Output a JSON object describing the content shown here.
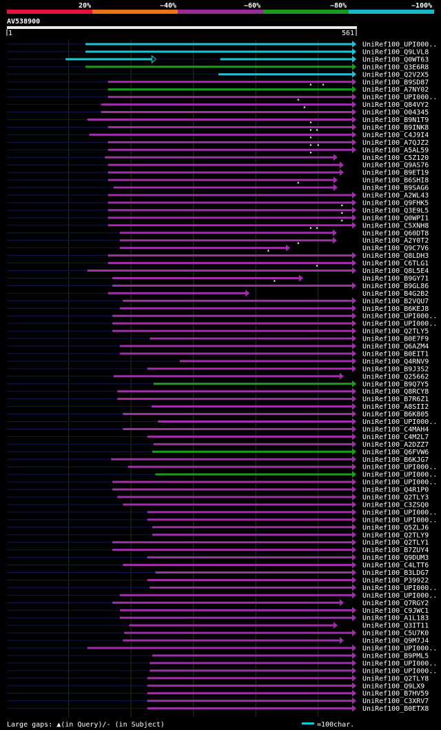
{
  "legend_bar": {
    "segments": [
      {
        "color": "#e8103a"
      },
      {
        "color": "#e8741a"
      },
      {
        "color": "#9a2a9a"
      },
      {
        "color": "#1a9a1a"
      },
      {
        "color": "#18b8c8"
      }
    ],
    "labels": [
      "20%",
      "~40%",
      "~60%",
      "~80%",
      "~100%"
    ]
  },
  "query": {
    "id": "AV538900",
    "start_label": "1",
    "end_label": "561",
    "start": 1,
    "end": 561
  },
  "colors": {
    "cyan": "#18c8d8",
    "purple": "#a030a8",
    "green": "#18a018",
    "navy": "#101850",
    "axis": "#e8e8e8",
    "guide": "#2a2f16"
  },
  "hits": [
    {
      "name": "UniRef100_UPI000..",
      "color": "cyan",
      "start": 127,
      "end": 561,
      "ticks": []
    },
    {
      "name": "UniRef100_Q9LVL8",
      "color": "cyan",
      "start": 127,
      "end": 561,
      "ticks": []
    },
    {
      "name": "UniRef100_Q0WT63",
      "color": "cyan",
      "start": 95,
      "end": 561,
      "ticks": [],
      "gap": [
        240,
        343
      ]
    },
    {
      "name": "UniRef100_Q3E6R8",
      "color": "green",
      "start": 127,
      "end": 561,
      "ticks": []
    },
    {
      "name": "UniRef100_Q2V2X5",
      "color": "cyan",
      "start": 340,
      "end": 561,
      "ticks": []
    },
    {
      "name": "UniRef100_B9SD87",
      "color": "purple",
      "start": 163,
      "end": 561,
      "ticks": [
        488,
        508
      ]
    },
    {
      "name": "UniRef100_A7NY02",
      "color": "green",
      "start": 163,
      "end": 561,
      "ticks": []
    },
    {
      "name": "UniRef100_UPI000..",
      "color": "purple",
      "start": 163,
      "end": 561,
      "ticks": [
        468
      ]
    },
    {
      "name": "UniRef100_Q84VY2",
      "color": "purple",
      "start": 152,
      "end": 561,
      "ticks": [
        478
      ]
    },
    {
      "name": "UniRef100_O04345",
      "color": "purple",
      "start": 152,
      "end": 561,
      "ticks": []
    },
    {
      "name": "UniRef100_B9N1T9",
      "color": "purple",
      "start": 130,
      "end": 561,
      "ticks": [
        488
      ]
    },
    {
      "name": "UniRef100_B9INK8",
      "color": "purple",
      "start": 163,
      "end": 561,
      "ticks": [
        488,
        498
      ]
    },
    {
      "name": "UniRef100_C4J9I4",
      "color": "purple",
      "start": 133,
      "end": 561,
      "ticks": [
        488
      ]
    },
    {
      "name": "UniRef100_A7QJZ2",
      "color": "purple",
      "start": 163,
      "end": 561,
      "ticks": [
        488,
        500
      ]
    },
    {
      "name": "UniRef100_A5AL59",
      "color": "purple",
      "start": 163,
      "end": 561,
      "ticks": [
        488
      ]
    },
    {
      "name": "UniRef100_C5Z120",
      "color": "purple",
      "start": 158,
      "end": 531,
      "ticks": []
    },
    {
      "name": "UniRef100_Q9AS76",
      "color": "purple",
      "start": 163,
      "end": 541,
      "ticks": []
    },
    {
      "name": "UniRef100_B9ET19",
      "color": "purple",
      "start": 163,
      "end": 541,
      "ticks": []
    },
    {
      "name": "UniRef100_B6SHI8",
      "color": "purple",
      "start": 163,
      "end": 531,
      "ticks": [
        468
      ]
    },
    {
      "name": "UniRef100_B9SAG6",
      "color": "purple",
      "start": 172,
      "end": 531,
      "ticks": []
    },
    {
      "name": "UniRef100_A2WL43",
      "color": "purple",
      "start": 163,
      "end": 561,
      "ticks": []
    },
    {
      "name": "UniRef100_Q9FHK5",
      "color": "purple",
      "start": 163,
      "end": 561,
      "ticks": [
        538
      ]
    },
    {
      "name": "UniRef100_Q3E9L5",
      "color": "purple",
      "start": 163,
      "end": 561,
      "ticks": [
        538
      ]
    },
    {
      "name": "UniRef100_Q0WPI1",
      "color": "purple",
      "start": 163,
      "end": 561,
      "ticks": [
        538
      ]
    },
    {
      "name": "UniRef100_C5XNH8",
      "color": "purple",
      "start": 163,
      "end": 561,
      "ticks": [
        488,
        498
      ]
    },
    {
      "name": "UniRef100_Q60DT8",
      "color": "purple",
      "start": 182,
      "end": 530,
      "ticks": []
    },
    {
      "name": "UniRef100_A2Y0T2",
      "color": "purple",
      "start": 182,
      "end": 530,
      "ticks": [
        468
      ]
    },
    {
      "name": "UniRef100_Q9C7V6",
      "color": "purple",
      "start": 182,
      "end": 455,
      "ticks": [
        420
      ]
    },
    {
      "name": "UniRef100_Q8LDH3",
      "color": "purple",
      "start": 163,
      "end": 561,
      "ticks": []
    },
    {
      "name": "UniRef100_C6TLG1",
      "color": "purple",
      "start": 163,
      "end": 561,
      "ticks": [
        498
      ]
    },
    {
      "name": "UniRef100_Q8L5E4",
      "color": "purple",
      "start": 130,
      "end": 561,
      "ticks": []
    },
    {
      "name": "UniRef100_B9GY71",
      "color": "purple",
      "start": 170,
      "end": 476,
      "ticks": [
        430
      ]
    },
    {
      "name": "UniRef100_B9GL86",
      "color": "purple",
      "start": 170,
      "end": 561,
      "ticks": []
    },
    {
      "name": "UniRef100_B4G2B2",
      "color": "purple",
      "start": 163,
      "end": 390,
      "ticks": []
    },
    {
      "name": "UniRef100_B2VQU7",
      "color": "purple",
      "start": 187,
      "end": 561,
      "ticks": []
    },
    {
      "name": "UniRef100_B6KEJ8",
      "color": "purple",
      "start": 182,
      "end": 561,
      "ticks": []
    },
    {
      "name": "UniRef100_UPI000..",
      "color": "purple",
      "start": 170,
      "end": 561,
      "ticks": []
    },
    {
      "name": "UniRef100_UPI000..",
      "color": "purple",
      "start": 170,
      "end": 561,
      "ticks": []
    },
    {
      "name": "UniRef100_Q2TLY5",
      "color": "purple",
      "start": 170,
      "end": 561,
      "ticks": []
    },
    {
      "name": "UniRef100_B0E7F9",
      "color": "purple",
      "start": 230,
      "end": 561,
      "ticks": []
    },
    {
      "name": "UniRef100_Q6AZM4",
      "color": "purple",
      "start": 182,
      "end": 561,
      "ticks": []
    },
    {
      "name": "UniRef100_B0EIT1",
      "color": "purple",
      "start": 182,
      "end": 561,
      "ticks": []
    },
    {
      "name": "UniRef100_Q4RNV9",
      "color": "purple",
      "start": 278,
      "end": 561,
      "ticks": []
    },
    {
      "name": "UniRef100_B9J3S2",
      "color": "purple",
      "start": 226,
      "end": 561,
      "ticks": []
    },
    {
      "name": "UniRef100_Q25662",
      "color": "purple",
      "start": 172,
      "end": 541,
      "ticks": []
    },
    {
      "name": "UniRef100_B9Q7Y5",
      "color": "green",
      "start": 236,
      "end": 561,
      "ticks": []
    },
    {
      "name": "UniRef100_Q8RCY8",
      "color": "purple",
      "start": 178,
      "end": 561,
      "ticks": []
    },
    {
      "name": "UniRef100_B7R6Z1",
      "color": "purple",
      "start": 178,
      "end": 561,
      "ticks": []
    },
    {
      "name": "UniRef100_A8SII2",
      "color": "purple",
      "start": 233,
      "end": 561,
      "ticks": []
    },
    {
      "name": "UniRef100_B6K805",
      "color": "purple",
      "start": 187,
      "end": 561,
      "ticks": []
    },
    {
      "name": "UniRef100_UPI000..",
      "color": "purple",
      "start": 243,
      "end": 561,
      "ticks": []
    },
    {
      "name": "UniRef100_C4MAH4",
      "color": "purple",
      "start": 187,
      "end": 561,
      "ticks": []
    },
    {
      "name": "UniRef100_C4M2L7",
      "color": "purple",
      "start": 226,
      "end": 561,
      "ticks": []
    },
    {
      "name": "UniRef100_A2DZZ7",
      "color": "purple",
      "start": 236,
      "end": 561,
      "ticks": []
    },
    {
      "name": "UniRef100_Q6FVW6",
      "color": "green",
      "start": 234,
      "end": 561,
      "ticks": []
    },
    {
      "name": "UniRef100_B6KJG7",
      "color": "purple",
      "start": 168,
      "end": 561,
      "ticks": []
    },
    {
      "name": "UniRef100_UPI000..",
      "color": "purple",
      "start": 195,
      "end": 561,
      "ticks": []
    },
    {
      "name": "UniRef100_UPI000..",
      "color": "green",
      "start": 239,
      "end": 561,
      "ticks": []
    },
    {
      "name": "UniRef100_UPI000..",
      "color": "purple",
      "start": 170,
      "end": 561,
      "ticks": []
    },
    {
      "name": "UniRef100_Q4R1P0",
      "color": "purple",
      "start": 170,
      "end": 561,
      "ticks": []
    },
    {
      "name": "UniRef100_Q2TLY3",
      "color": "purple",
      "start": 178,
      "end": 561,
      "ticks": []
    },
    {
      "name": "UniRef100_C3ZSQ0",
      "color": "purple",
      "start": 187,
      "end": 561,
      "ticks": []
    },
    {
      "name": "UniRef100_UPI000..",
      "color": "purple",
      "start": 226,
      "end": 561,
      "ticks": []
    },
    {
      "name": "UniRef100_UPI000..",
      "color": "purple",
      "start": 226,
      "end": 561,
      "ticks": []
    },
    {
      "name": "UniRef100_Q5ZLJ6",
      "color": "purple",
      "start": 234,
      "end": 561,
      "ticks": []
    },
    {
      "name": "UniRef100_Q2TLY9",
      "color": "purple",
      "start": 234,
      "end": 561,
      "ticks": []
    },
    {
      "name": "UniRef100_Q2TLY1",
      "color": "purple",
      "start": 170,
      "end": 561,
      "ticks": []
    },
    {
      "name": "UniRef100_B7ZUY4",
      "color": "purple",
      "start": 170,
      "end": 561,
      "ticks": []
    },
    {
      "name": "UniRef100_Q9DUM3",
      "color": "purple",
      "start": 226,
      "end": 561,
      "ticks": []
    },
    {
      "name": "UniRef100_C4LTT6",
      "color": "purple",
      "start": 187,
      "end": 561,
      "ticks": []
    },
    {
      "name": "UniRef100_B3LDG7",
      "color": "purple",
      "start": 239,
      "end": 561,
      "ticks": []
    },
    {
      "name": "UniRef100_P39922",
      "color": "purple",
      "start": 226,
      "end": 561,
      "ticks": []
    },
    {
      "name": "UniRef100_UPI000..",
      "color": "purple",
      "start": 230,
      "end": 561,
      "ticks": []
    },
    {
      "name": "UniRef100_UPI000..",
      "color": "purple",
      "start": 182,
      "end": 561,
      "ticks": []
    },
    {
      "name": "UniRef100_Q7RGY2",
      "color": "purple",
      "start": 170,
      "end": 541,
      "ticks": []
    },
    {
      "name": "UniRef100_C9JWC1",
      "color": "purple",
      "start": 182,
      "end": 561,
      "ticks": []
    },
    {
      "name": "UniRef100_A1L183",
      "color": "purple",
      "start": 182,
      "end": 561,
      "ticks": []
    },
    {
      "name": "UniRef100_Q3IT11",
      "color": "purple",
      "start": 197,
      "end": 531,
      "ticks": []
    },
    {
      "name": "UniRef100_C5U7K0",
      "color": "purple",
      "start": 189,
      "end": 561,
      "ticks": []
    },
    {
      "name": "UniRef100_Q9M7J4",
      "color": "purple",
      "start": 187,
      "end": 541,
      "ticks": []
    },
    {
      "name": "UniRef100_UPI000..",
      "color": "purple",
      "start": 130,
      "end": 561,
      "ticks": []
    },
    {
      "name": "UniRef100_B9PML5",
      "color": "purple",
      "start": 234,
      "end": 561,
      "ticks": []
    },
    {
      "name": "UniRef100_UPI000..",
      "color": "purple",
      "start": 230,
      "end": 561,
      "ticks": []
    },
    {
      "name": "UniRef100_UPI000..",
      "color": "purple",
      "start": 230,
      "end": 561,
      "ticks": []
    },
    {
      "name": "UniRef100_Q2TLY8",
      "color": "purple",
      "start": 226,
      "end": 561,
      "ticks": []
    },
    {
      "name": "UniRef100_Q9LX9",
      "color": "purple",
      "start": 226,
      "end": 561,
      "ticks": []
    },
    {
      "name": "UniRef100_B7HV59",
      "color": "purple",
      "start": 226,
      "end": 561,
      "ticks": []
    },
    {
      "name": "UniRef100_C3XRV7",
      "color": "purple",
      "start": 226,
      "end": 561,
      "ticks": []
    },
    {
      "name": "UniRef100_B0ETX8",
      "color": "purple",
      "start": 226,
      "end": 561,
      "ticks": []
    }
  ],
  "footer": {
    "gaps_label": "Large gaps: ▲(in Query)/- (in Subject)",
    "scale_label": "=100char."
  }
}
